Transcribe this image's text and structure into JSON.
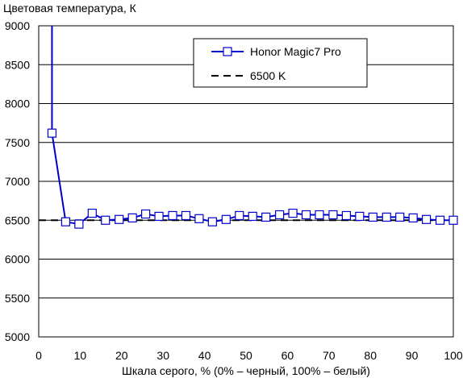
{
  "chart_data": {
    "type": "line",
    "title": "",
    "ylabel": "Цветовая температура, К",
    "xlabel": "Шкала серого, % (0% – черный, 100% – белый)",
    "xlim": [
      0,
      100
    ],
    "ylim": [
      5000,
      9000
    ],
    "xticks": [
      0,
      10,
      20,
      30,
      40,
      50,
      60,
      70,
      80,
      90,
      100
    ],
    "yticks": [
      5000,
      5500,
      6000,
      6500,
      7000,
      7500,
      8000,
      8500,
      9000
    ],
    "grid": "horizontal",
    "legend_position": "top-right",
    "series": [
      {
        "name": "Honor Magic7 Pro",
        "color": "#0000cc",
        "marker": "square",
        "line_start": {
          "x": 3.2,
          "y": 9000
        },
        "x": [
          3.2,
          6.5,
          9.7,
          12.9,
          16.1,
          19.4,
          22.6,
          25.8,
          29.0,
          32.3,
          35.5,
          38.7,
          41.9,
          45.2,
          48.4,
          51.6,
          54.8,
          58.1,
          61.3,
          64.5,
          67.7,
          71.0,
          74.2,
          77.4,
          80.6,
          83.9,
          87.1,
          90.3,
          93.5,
          96.8,
          100
        ],
        "y": [
          7620,
          6480,
          6450,
          6590,
          6500,
          6510,
          6530,
          6580,
          6550,
          6560,
          6560,
          6520,
          6480,
          6510,
          6560,
          6550,
          6540,
          6570,
          6590,
          6570,
          6570,
          6570,
          6560,
          6550,
          6540,
          6540,
          6540,
          6530,
          6510,
          6500,
          6500
        ]
      },
      {
        "name": "6500 K",
        "color": "#000000",
        "dash": "dashed",
        "x": [
          0,
          100
        ],
        "y": [
          6500,
          6500
        ]
      }
    ]
  }
}
